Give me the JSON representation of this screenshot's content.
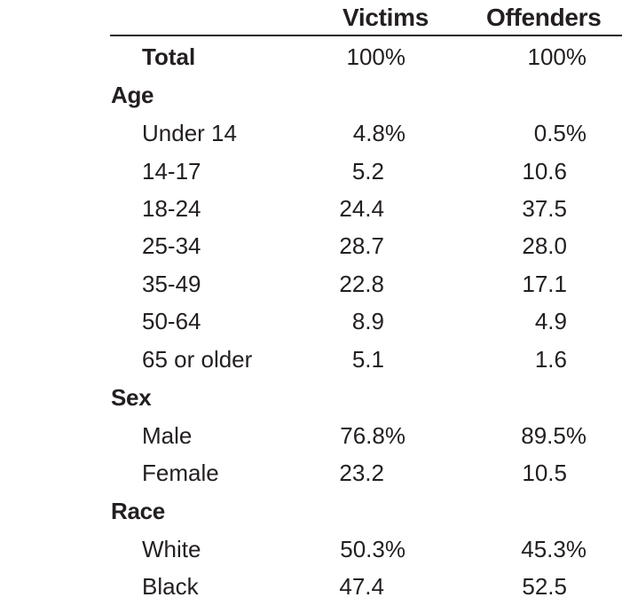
{
  "header": {
    "victims": "Victims",
    "offenders": "Offenders"
  },
  "rows": [
    {
      "type": "total",
      "label": "Total",
      "victims": "100%",
      "offenders": "100%"
    },
    {
      "type": "section",
      "label": "Age"
    },
    {
      "type": "item",
      "label": "Under 14",
      "victims": "4.8%",
      "offenders": "0.5%"
    },
    {
      "type": "item",
      "label": "14-17",
      "victims": "5.2",
      "offenders": "10.6"
    },
    {
      "type": "item",
      "label": "18-24",
      "victims": "24.4",
      "offenders": "37.5"
    },
    {
      "type": "item",
      "label": "25-34",
      "victims": "28.7",
      "offenders": "28.0"
    },
    {
      "type": "item",
      "label": "35-49",
      "victims": "22.8",
      "offenders": "17.1"
    },
    {
      "type": "item",
      "label": "50-64",
      "victims": "8.9",
      "offenders": "4.9"
    },
    {
      "type": "item",
      "label": "65 or older",
      "victims": "5.1",
      "offenders": "1.6"
    },
    {
      "type": "section",
      "label": "Sex"
    },
    {
      "type": "item",
      "label": "Male",
      "victims": "76.8%",
      "offenders": "89.5%"
    },
    {
      "type": "item",
      "label": "Female",
      "victims": "23.2",
      "offenders": "10.5"
    },
    {
      "type": "section",
      "label": "Race"
    },
    {
      "type": "item",
      "label": "White",
      "victims": "50.3%",
      "offenders": "45.3%"
    },
    {
      "type": "item",
      "label": "Black",
      "victims": "47.4",
      "offenders": "52.5"
    }
  ]
}
